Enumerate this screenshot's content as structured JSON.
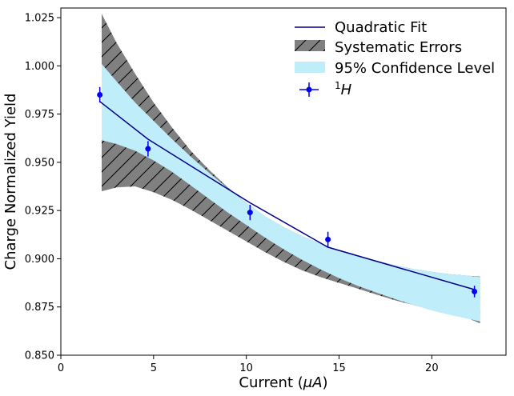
{
  "chart_data": {
    "type": "line",
    "title": "",
    "xlabel_prefix": "Current (",
    "xlabel_mu": "μ",
    "xlabel_unit": "A",
    "xlabel_suffix": ")",
    "ylabel": "Charge Normalized Yield",
    "xlim": [
      0,
      24
    ],
    "ylim": [
      0.85,
      1.03
    ],
    "x_ticks": [
      0,
      5,
      10,
      15,
      20
    ],
    "x_tick_labels": [
      "0",
      "5",
      "10",
      "15",
      "20"
    ],
    "y_ticks": [
      0.85,
      0.875,
      0.9,
      0.925,
      0.95,
      0.975,
      1.0,
      1.025
    ],
    "y_tick_labels": [
      "0.850",
      "0.875",
      "0.900",
      "0.925",
      "0.950",
      "0.975",
      "1.000",
      "1.025"
    ],
    "legend_position": "top-right",
    "legend": {
      "fit": "Quadratic Fit",
      "systematic": "Systematic Errors",
      "confidence": "95% Confidence Level",
      "data_sup": "1",
      "data_main": "H"
    },
    "colors": {
      "fit": "#00008b",
      "data": "#0000ee",
      "systematic_fill": "#808080",
      "confidence_fill": "#bfeefa"
    },
    "band_x": [
      2.2,
      3,
      4,
      5,
      6,
      7,
      8,
      9,
      10,
      11,
      12,
      13,
      14,
      15,
      16,
      17,
      18,
      19,
      20,
      21,
      22,
      22.6
    ],
    "systematic_upper": [
      1.027,
      1.012,
      0.996,
      0.981,
      0.968,
      0.956,
      0.946,
      0.937,
      0.929,
      0.922,
      0.9165,
      0.9118,
      0.9078,
      0.9045,
      0.9015,
      0.899,
      0.8967,
      0.8947,
      0.8932,
      0.892,
      0.8912,
      0.8908
    ],
    "systematic_lower": [
      0.935,
      0.937,
      0.9375,
      0.9345,
      0.9305,
      0.9255,
      0.92,
      0.9145,
      0.909,
      0.9035,
      0.8985,
      0.894,
      0.8905,
      0.8875,
      0.8845,
      0.8815,
      0.8785,
      0.876,
      0.8735,
      0.871,
      0.869,
      0.8665
    ],
    "confidence_upper": [
      1.001,
      0.992,
      0.981,
      0.9715,
      0.962,
      0.953,
      0.9445,
      0.9365,
      0.929,
      0.922,
      0.9165,
      0.9118,
      0.9078,
      0.9045,
      0.9015,
      0.899,
      0.8967,
      0.8947,
      0.8932,
      0.892,
      0.8912,
      0.8905
    ],
    "confidence_lower": [
      0.9615,
      0.9595,
      0.956,
      0.951,
      0.945,
      0.938,
      0.931,
      0.924,
      0.9175,
      0.911,
      0.905,
      0.8995,
      0.8945,
      0.89,
      0.886,
      0.8825,
      0.8792,
      0.876,
      0.8732,
      0.8708,
      0.8688,
      0.8675
    ],
    "fit_line": {
      "x": [
        2.1,
        4.7,
        10.2,
        14.4,
        22.3
      ],
      "y": [
        0.9815,
        0.962,
        0.929,
        0.906,
        0.884
      ]
    },
    "series": [
      {
        "name": "1H",
        "x": [
          2.1,
          4.7,
          10.2,
          14.4,
          22.3
        ],
        "y": [
          0.985,
          0.957,
          0.924,
          0.91,
          0.883
        ],
        "yerr": [
          0.004,
          0.004,
          0.004,
          0.004,
          0.003
        ]
      }
    ]
  }
}
